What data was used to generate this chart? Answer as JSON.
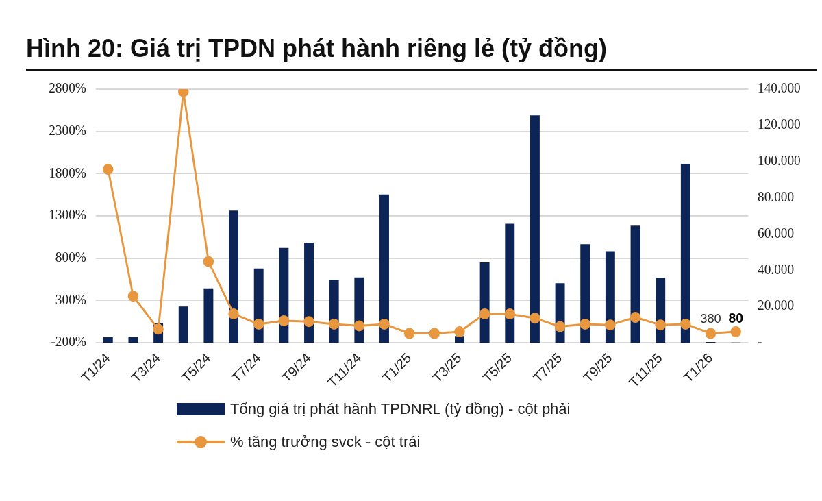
{
  "chart_data": {
    "type": "bar",
    "title": "Hình 20: Giá trị TPDN phát hành riêng lẻ (tỷ đồng)",
    "categories": [
      "T1/24",
      null,
      "T3/24",
      null,
      "T5/24",
      null,
      "T7/24",
      null,
      "T9/24",
      null,
      "T11/24",
      null,
      "T1/25",
      null,
      "T3/25",
      null,
      "T5/25",
      null,
      "T7/25",
      null,
      "T9/25",
      null,
      "T11/25",
      null,
      "T1/26",
      null
    ],
    "series": [
      {
        "name": "Tổng giá trị phát hành TPDNRL (tỷ đồng) - cột phải",
        "axis": "y2",
        "color": "#0d2457",
        "values": [
          3000,
          3000,
          11000,
          20000,
          30000,
          72900,
          41000,
          52300,
          55300,
          34700,
          36100,
          81800,
          0,
          0,
          3700,
          44300,
          65700,
          125500,
          32800,
          54400,
          50500,
          64600,
          35800,
          98700,
          380,
          80
        ],
        "value_labels": [
          null,
          null,
          null,
          null,
          null,
          null,
          null,
          null,
          null,
          null,
          null,
          null,
          null,
          null,
          null,
          null,
          null,
          null,
          null,
          null,
          null,
          null,
          null,
          null,
          "380",
          "80"
        ]
      },
      {
        "name": "% tăng trưởng svck - cột trái",
        "type": "line",
        "axis": "y",
        "color": "#e8973e",
        "marker": "circle",
        "values": [
          1850,
          350,
          -40,
          2770,
          760,
          140,
          20,
          60,
          50,
          20,
          0,
          20,
          -90,
          -90,
          -70,
          140,
          140,
          90,
          -10,
          20,
          10,
          100,
          10,
          20,
          -90,
          -70
        ]
      }
    ],
    "ylim": [
      -200,
      2800
    ],
    "yticks": [
      {
        "value": -200,
        "label": "-200%"
      },
      {
        "value": 300,
        "label": "300%"
      },
      {
        "value": 800,
        "label": "800%"
      },
      {
        "value": 1300,
        "label": "1300%"
      },
      {
        "value": 1800,
        "label": "1800%"
      },
      {
        "value": 2300,
        "label": "2300%"
      },
      {
        "value": 2800,
        "label": "2800%"
      }
    ],
    "y2lim": [
      0,
      140000
    ],
    "y2ticks": [
      {
        "value": 0,
        "label": "-"
      },
      {
        "value": 20000,
        "label": "20.000"
      },
      {
        "value": 40000,
        "label": "40.000"
      },
      {
        "value": 60000,
        "label": "60.000"
      },
      {
        "value": 80000,
        "label": "80.000"
      },
      {
        "value": 100000,
        "label": "100.000"
      },
      {
        "value": 120000,
        "label": "120.000"
      },
      {
        "value": 140000,
        "label": "140.000"
      }
    ],
    "grid": "y",
    "legend": "bottom"
  }
}
